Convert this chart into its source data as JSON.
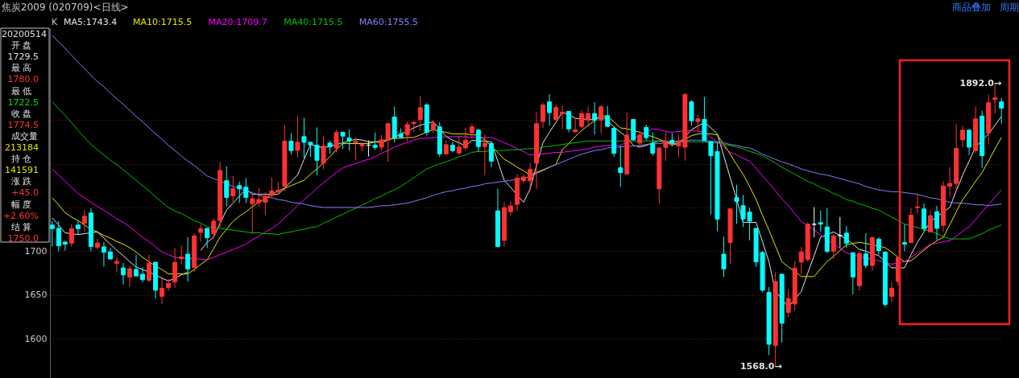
{
  "chart_data": {
    "type": "candlestick",
    "title": "焦炭2009 (020709)<日线>",
    "categories": [
      null,
      null,
      null,
      null,
      null,
      null,
      null,
      null,
      null,
      null,
      null,
      null,
      null,
      null,
      null,
      null,
      null,
      null,
      null,
      null,
      null,
      null,
      null,
      null,
      null,
      null,
      null,
      null,
      null,
      null,
      null,
      null,
      null,
      null,
      null,
      null,
      null,
      null,
      null,
      null,
      null,
      null,
      null,
      null,
      null,
      null,
      null,
      null,
      null,
      null,
      null,
      null,
      null,
      null,
      null,
      null,
      null,
      null,
      null,
      null,
      null,
      null,
      null,
      null,
      null,
      null,
      null,
      null,
      null,
      null,
      null,
      null,
      null,
      null,
      null,
      null,
      null,
      null,
      null,
      null,
      null,
      null,
      null,
      null,
      null,
      null,
      null,
      null,
      null,
      null,
      null,
      null,
      null,
      null,
      null,
      null,
      null,
      null,
      null,
      null,
      null,
      null,
      null,
      null,
      null,
      null,
      null,
      null,
      null,
      null,
      null,
      null,
      null,
      null,
      null,
      null,
      null,
      null,
      null,
      null,
      null,
      null,
      null,
      null,
      null,
      null,
      null,
      null,
      null,
      null,
      null,
      null,
      null,
      null,
      null,
      null,
      null,
      null,
      null,
      null,
      null,
      null,
      null,
      null,
      null,
      null,
      null,
      null
    ],
    "ohlc": [
      [
        1729.8,
        1734.4,
        1705.2,
        1725.8
      ],
      [
        1726.1,
        1734.4,
        1700,
        1706.2
      ],
      [
        1710.5,
        1710.5,
        1700.6,
        1708
      ],
      [
        1709.2,
        1730.8,
        1705.2,
        1725.8
      ],
      [
        1729.8,
        1734.4,
        1719,
        1725.8
      ],
      [
        1732,
        1746.7,
        1722.1,
        1740
      ],
      [
        1743.7,
        1749.2,
        1700,
        1705.2
      ],
      [
        1704.6,
        1714.1,
        1701.8,
        1709.2
      ],
      [
        1704.9,
        1710.5,
        1682.2,
        1698.8
      ],
      [
        1699.1,
        1703.7,
        1690.5,
        1691.1
      ],
      [
        1686.2,
        1693.8,
        1676,
        1688.3
      ],
      [
        1680.9,
        1686.5,
        1661.9,
        1672.9
      ],
      [
        1670.5,
        1682.8,
        1659.1,
        1679.7
      ],
      [
        1679.1,
        1695.7,
        1671.1,
        1671.7
      ],
      [
        1673.6,
        1681.5,
        1664.3,
        1667.4
      ],
      [
        1666.8,
        1695.7,
        1665.3,
        1686.2
      ],
      [
        1687.4,
        1687.4,
        1645.9,
        1655.4
      ],
      [
        1648.3,
        1670.5,
        1639.7,
        1657.6
      ],
      [
        1658.2,
        1668.3,
        1654.5,
        1663.1
      ],
      [
        1664.9,
        1703.7,
        1658.2,
        1687.1
      ],
      [
        1691.4,
        1706.8,
        1684.6,
        1693.5
      ],
      [
        1696.6,
        1716,
        1665.3,
        1679.7
      ],
      [
        1681.5,
        1720.6,
        1676,
        1717.5
      ],
      [
        1721.5,
        1730.8,
        1711.1,
        1725.8
      ],
      [
        1726.1,
        1726.1,
        1703.7,
        1715.4
      ],
      [
        1720,
        1737.5,
        1714.5,
        1734.4
      ],
      [
        1735,
        1802.1,
        1726.8,
        1792.3
      ],
      [
        1780.6,
        1797.2,
        1751.4,
        1761.5
      ],
      [
        1763.3,
        1786.1,
        1756,
        1771.3
      ],
      [
        1775,
        1779.6,
        1755,
        1771.3
      ],
      [
        1773.2,
        1783.6,
        1755,
        1761.5
      ],
      [
        1754.4,
        1765.2,
        1720,
        1760
      ],
      [
        1755.4,
        1772,
        1750.7,
        1759
      ],
      [
        1756,
        1767.6,
        1741.2,
        1762.7
      ],
      [
        1763.7,
        1784.3,
        1760.6,
        1768.9
      ],
      [
        1767.7,
        1778.7,
        1764.6,
        1769.8
      ],
      [
        1774.4,
        1844.2,
        1768.3,
        1825.8
      ],
      [
        1825.8,
        1835,
        1810.4,
        1815
      ],
      [
        1815.3,
        1854.4,
        1806.7,
        1824.5
      ],
      [
        1831,
        1852.5,
        1806.7,
        1824.5
      ],
      [
        1824.5,
        1825.2,
        1807.6,
        1821.5
      ],
      [
        1821.2,
        1841.5,
        1786.7,
        1803.9
      ],
      [
        1800.6,
        1831.3,
        1793.8,
        1820.5
      ],
      [
        1823.6,
        1826.1,
        1811.3,
        1819.3
      ],
      [
        1818.1,
        1838.7,
        1812.9,
        1835.6
      ],
      [
        1835.9,
        1836.8,
        1816.9,
        1831.6
      ],
      [
        1829.2,
        1839,
        1815,
        1826.1
      ],
      [
        1824.2,
        1830.4,
        1804.5,
        1825.8
      ],
      [
        1820.5,
        1824.2,
        1813.8,
        1822
      ],
      [
        1821.2,
        1826.7,
        1808.2,
        1821.2
      ],
      [
        1821.2,
        1835.9,
        1816,
        1818.7
      ],
      [
        1819,
        1832.8,
        1815,
        1827.3
      ],
      [
        1826.7,
        1846.7,
        1802.1,
        1845.8
      ],
      [
        1853.4,
        1865.4,
        1824.2,
        1829.2
      ],
      [
        1834.1,
        1840.5,
        1829.2,
        1830.4
      ],
      [
        1832.8,
        1848.2,
        1825.2,
        1844.8
      ],
      [
        1845.8,
        1848.8,
        1836.5,
        1847.3
      ],
      [
        1850.4,
        1877.4,
        1837.5,
        1864.2
      ],
      [
        1867.3,
        1869.1,
        1832.2,
        1835.9
      ],
      [
        1839,
        1849.8,
        1835.3,
        1845.8
      ],
      [
        1842.1,
        1847.6,
        1807.6,
        1811.3
      ],
      [
        1811.3,
        1826.7,
        1809.5,
        1821.8
      ],
      [
        1821.2,
        1825.2,
        1813.2,
        1815
      ],
      [
        1812.2,
        1832.2,
        1809.8,
        1819
      ],
      [
        1818.1,
        1841.5,
        1815,
        1826.7
      ],
      [
        1835.3,
        1845.8,
        1829.2,
        1842.1
      ],
      [
        1838.4,
        1840.2,
        1813.5,
        1819.6
      ],
      [
        1819.6,
        1832.8,
        1786.7,
        1823.6
      ],
      [
        1823,
        1825.2,
        1795.9,
        1803
      ],
      [
        1746.1,
        1771.3,
        1704.3,
        1705.2
      ],
      [
        1712.3,
        1756,
        1705.2,
        1749.8
      ],
      [
        1745.2,
        1757.2,
        1740.6,
        1751.7
      ],
      [
        1753.5,
        1788.2,
        1746.1,
        1783.6
      ],
      [
        1780.6,
        1788.2,
        1778.1,
        1784.9
      ],
      [
        1780.6,
        1800.6,
        1768.9,
        1793.5
      ],
      [
        1800.6,
        1859,
        1771.3,
        1845.8
      ],
      [
        1848.2,
        1869.7,
        1840.5,
        1867.3
      ],
      [
        1870.7,
        1879.6,
        1843.6,
        1858.4
      ],
      [
        1850.4,
        1867.3,
        1849.8,
        1864.2
      ],
      [
        1857.4,
        1866.1,
        1839.6,
        1859
      ],
      [
        1859.9,
        1859.9,
        1835.9,
        1839.9
      ],
      [
        1836.5,
        1851.3,
        1835.9,
        1838.7
      ],
      [
        1842.7,
        1861.4,
        1840.5,
        1857.4
      ],
      [
        1849.8,
        1865.1,
        1842.1,
        1857.4
      ],
      [
        1857.4,
        1870.4,
        1833.5,
        1849.8
      ],
      [
        1849.8,
        1866.7,
        1834.4,
        1865.1
      ],
      [
        1855,
        1866.1,
        1842.1,
        1842.7
      ],
      [
        1840.5,
        1842.7,
        1808.2,
        1811.9
      ],
      [
        1795.3,
        1820.5,
        1773.5,
        1789.8
      ],
      [
        1788.3,
        1859,
        1787.3,
        1832.8
      ],
      [
        1850.7,
        1850.7,
        1826.7,
        1827.3
      ],
      [
        1823.6,
        1837.5,
        1819,
        1832.8
      ],
      [
        1841.5,
        1844.5,
        1826.7,
        1829.8
      ],
      [
        1823,
        1835.9,
        1809.2,
        1811.9
      ],
      [
        1771.3,
        1818.1,
        1754.1,
        1818.1
      ],
      [
        1818.7,
        1836.5,
        1803.6,
        1826.1
      ],
      [
        1826.7,
        1835,
        1819.9,
        1823.6
      ],
      [
        1820.5,
        1832.8,
        1807.6,
        1826.1
      ],
      [
        1819,
        1881.1,
        1803.6,
        1879
      ],
      [
        1870.7,
        1872.8,
        1843.6,
        1849.1
      ],
      [
        1848.2,
        1855.9,
        1837.5,
        1851.3
      ],
      [
        1850.7,
        1876.5,
        1826.1,
        1826.7
      ],
      [
        1825.2,
        1825.2,
        1742.1,
        1809.2
      ],
      [
        1813.8,
        1824.2,
        1722.8,
        1736.6
      ],
      [
        1696.6,
        1716.6,
        1670.5,
        1679.7
      ],
      [
        1709.8,
        1748.3,
        1685.2,
        1748.3
      ],
      [
        1761.2,
        1775.9,
        1731.4,
        1756.9
      ],
      [
        1752,
        1764.3,
        1727.7,
        1736.9
      ],
      [
        1744.6,
        1749.8,
        1712.3,
        1734.4
      ],
      [
        1726.1,
        1726.1,
        1682.2,
        1687.7
      ],
      [
        1698.5,
        1700.6,
        1653,
        1655.4
      ],
      [
        1652.9,
        1659.1,
        1581.3,
        1593.6
      ],
      [
        1592.1,
        1675.4,
        1568.0,
        1665.3
      ],
      [
        1673.6,
        1674.5,
        1595.5,
        1617.6
      ],
      [
        1629.9,
        1657,
        1624.7,
        1645.9
      ],
      [
        1639.7,
        1688.9,
        1632.3,
        1680.6
      ],
      [
        1687.7,
        1704.9,
        1673.6,
        1699.1
      ],
      [
        1690.5,
        1732.9,
        1688.3,
        1730.8
      ],
      [
        1730.8,
        1750.4,
        1716,
        1730.8
      ],
      [
        1732.6,
        1746.7,
        1722.1,
        1730.8
      ],
      [
        1727.7,
        1749.2,
        1697.5,
        1699.7
      ],
      [
        1700,
        1719,
        1691.4,
        1717.5
      ],
      [
        1717.8,
        1739.1,
        1703.7,
        1717.8
      ],
      [
        1720.6,
        1728.9,
        1703.7,
        1709.2
      ],
      [
        1698.2,
        1698.2,
        1650.8,
        1670.5
      ],
      [
        1660.6,
        1699.1,
        1655.1,
        1697.5
      ],
      [
        1696.9,
        1720.6,
        1680.6,
        1683.7
      ],
      [
        1683.7,
        1717.5,
        1677.6,
        1715.4
      ],
      [
        1713.8,
        1716,
        1696,
        1700.6
      ],
      [
        1699.1,
        1699.1,
        1636,
        1639.1
      ],
      [
        1648.3,
        1664.3,
        1641.6,
        1657.6
      ],
      [
        1665.3,
        1693.8,
        1660.6,
        1692.9
      ],
      [
        1709.8,
        1730.8,
        1700,
        1708
      ],
      [
        1709.8,
        1749.2,
        1709.2,
        1741.2
      ],
      [
        1749.8,
        1765.8,
        1743.1,
        1750.7
      ],
      [
        1748.3,
        1754.4,
        1722.8,
        1726.1
      ],
      [
        1722.1,
        1746.7,
        1721.5,
        1740.6
      ],
      [
        1745.2,
        1752,
        1712.9,
        1726.1
      ],
      [
        1729.5,
        1780.0,
        1722.5,
        1774.5
      ],
      [
        1774.4,
        1795.9,
        1762.1,
        1777.5
      ],
      [
        1777.5,
        1845.2,
        1768.3,
        1817.5
      ],
      [
        1827.3,
        1843.3,
        1819,
        1838.4
      ],
      [
        1838.4,
        1838.4,
        1809.8,
        1819
      ],
      [
        1815,
        1865.1,
        1811.9,
        1851.3
      ],
      [
        1854.4,
        1860.5,
        1795.3,
        1809.2
      ],
      [
        1835.3,
        1879,
        1822.1,
        1869.7
      ],
      [
        1873.4,
        1892.0,
        1857.4,
        1875.3
      ],
      [
        1870.7,
        1875.3,
        1845.8,
        1863.6
      ]
    ],
    "series": [
      {
        "name": "MA5:1743.4",
        "type": "line",
        "color": "#e6e6e6",
        "values": [
          1738,
          1730,
          1721,
          1720,
          1719,
          1720,
          1721,
          1722,
          1715,
          1708,
          1701,
          1695,
          1688,
          1682,
          1679,
          1676,
          1673,
          1669,
          1666,
          1669,
          1673,
          1676,
          null,
          1701,
          1710,
          1716,
          1732,
          1747,
          1755,
          1763,
          1771,
          1765,
          1765,
          1765,
          1765,
          1765,
          1772,
          1780,
          1787,
          1805,
          1822,
          1820,
          1818,
          1820,
          1822,
          1824,
          1826,
          1828,
          1827,
          1825,
          1825,
          1824,
          1827,
          1830,
          1834,
          1837,
          1841,
          1844,
          1846,
          1848,
          1840,
          1831,
          1827,
          1824,
          1820,
          1827,
          1826,
          1826,
          1825,
          1803,
          1781,
          1773,
          1764,
          1756,
          1771,
          1798,
          1824,
          1836,
          1847,
          1859,
          1856,
          1852,
          1851,
          1851,
          1850,
          1855,
          1849,
          1842,
          1836,
          1830,
          1821,
          1819,
          1821,
          1824,
          1826,
          1825,
          1823,
          1822,
          1831,
          1839,
          1843,
          1847,
          1841,
          1834,
          1809,
          1784,
          1759,
          1733,
          1733,
          1733,
          1711,
          1688,
          1654,
          1645,
          1636,
          1645,
          1654,
          1675,
          1695,
          1716,
          1719,
          1722,
          1718,
          1714,
          1708,
          1702,
          1700,
          1697,
          1695,
          1688,
          1681,
          1681,
          1681,
          1696,
          1710,
          1722,
          1734,
          1739,
          1745,
          1750,
          1769,
          1787,
          1803,
          1819,
          1827,
          1834,
          1844,
          1854
        ]
      },
      {
        "name": "MA10:1715.5",
        "type": "line",
        "color": "#e8e800",
        "values": [
          1761,
          1753,
          1744,
          1739,
          1735,
          1730,
          1725,
          1722,
          1718,
          1715,
          1711,
          1708,
          1704,
          1699,
          1693,
          1688,
          1683,
          1679,
          1674,
          1674,
          1674,
          1674,
          1679,
          1685,
          1690,
          1703,
          1716,
          1725,
          1734,
          1740,
          1745,
          1751,
          1756,
          1760,
          1765,
          1769,
          1772,
          1775,
          1778,
          1781,
          1788,
          1794,
          1801,
          1808,
          1816,
          1823,
          1823,
          1823,
          1823,
          1823,
          1825,
          1826,
          1828,
          1829,
          1829,
          1830,
          1830,
          1833,
          1836,
          1839,
          1837,
          1836,
          1834,
          1834,
          1834,
          1833,
          1833,
          1827,
          1820,
          1813,
          1805,
          1801,
          1796,
          1792,
          1787,
          1790,
          1793,
          1796,
          1799,
          1816,
          1823,
          1831,
          1838,
          1844,
          1849,
          1855,
          1854,
          1848,
          1841,
          1840,
          1838,
          1836,
          1833,
          1831,
          1828,
          1825,
          1821,
          1825,
          1828,
          1832,
          1834,
          1835,
          1834,
          1833,
          1822,
          1811,
          1799,
          1788,
          1774,
          1759,
          1741,
          1724,
          1706,
          1688,
          1682,
          1677,
          1671,
          1671,
          1671,
          1680,
          1688,
          1694,
          1701,
          1707,
          1709,
          1710,
          1709,
          1707,
          1706,
          1704,
          1699,
          1693,
          1688,
          1689,
          1695,
          1701,
          1707,
          1712,
          1716,
          1730,
          1745,
          1759,
          1769,
          1780,
          1790,
          1803,
          1817,
          1830
        ]
      },
      {
        "name": "MA20:1709.7",
        "type": "line",
        "color": "#ff00ff",
        "values": [
          1794,
          1787,
          1780,
          1773,
          1766,
          1761,
          1756,
          1751,
          1747,
          1742,
          1737,
          1733,
          1728,
          1722,
          1716,
          1711,
          1705,
          1699,
          1696,
          1693,
          1692,
          1692,
          1691,
          1691,
          1690,
          1693,
          1696,
          1699,
          1702,
          1705,
          1708,
          1713,
          1717,
          1722,
          1726,
          1731,
          1738,
          1745,
          1752,
          1759,
          1765,
          1772,
          1778,
          1784,
          1790,
          1795,
          1798,
          1800,
          1803,
          1805,
          1808,
          1812,
          1815,
          1819,
          1822,
          1824,
          1827,
          1829,
          1829,
          1830,
          1830,
          1831,
          1831,
          1831,
          1831,
          1830,
          1830,
          1830,
          1830,
          1827,
          1824,
          1821,
          1817,
          1814,
          1810,
          1811,
          1811,
          1812,
          1813,
          1813,
          1814,
          1815,
          1816,
          1817,
          1819,
          1820,
          1821,
          1821,
          1821,
          1825,
          1829,
          1832,
          1836,
          1840,
          1839,
          1837,
          1836,
          1837,
          1837,
          1838,
          1837,
          1836,
          1830,
          1825,
          1819,
          1813,
          1810,
          1806,
          1803,
          1795,
          1786,
          1778,
          1769,
          1760,
          1752,
          1743,
          1734,
          1729,
          1724,
          1719,
          1714,
          1708,
          1703,
          1698,
          1696,
          1694,
          1692,
          1691,
          1689,
          1687,
          1685,
          1687,
          1688,
          1693,
          1698,
          1703,
          1708,
          1709,
          1711,
          1712,
          1717,
          1723,
          1728,
          1736,
          1745,
          1753,
          1762,
          1770
        ]
      },
      {
        "name": "MA40:1715.5",
        "type": "line",
        "color": "#00c000",
        "values": [
          1871,
          1863,
          1855,
          1847,
          1838,
          1830,
          1822,
          1816,
          1810,
          1804,
          1799,
          1793,
          1787,
          1781,
          1775,
          1769,
          1762,
          1756,
          1750,
          1746,
          1743,
          1739,
          1735,
          1732,
          1728,
          1727,
          1726,
          1725,
          1724,
          1723,
          1722,
          1721,
          1721,
          1720,
          1720,
          1719,
          1721,
          1722,
          1724,
          1725,
          1727,
          1728,
          1732,
          1735,
          1739,
          1742,
          1746,
          1749,
          1753,
          1756,
          1760,
          1763,
          1767,
          1770,
          1774,
          1779,
          1784,
          1789,
          1794,
          1797,
          1800,
          1802,
          1805,
          1808,
          1810,
          1813,
          1814,
          1814,
          1815,
          1815,
          1815,
          1816,
          1816,
          1817,
          1817,
          1818,
          1819,
          1820,
          1821,
          1822,
          1823,
          1824,
          1825,
          1826,
          1826,
          1826,
          1826,
          1826,
          1826,
          1826,
          1826,
          1826,
          1826,
          1826,
          1826,
          1826,
          1825,
          1825,
          1825,
          1825,
          1825,
          1825,
          1824,
          1824,
          1822,
          1821,
          1819,
          1817,
          1814,
          1812,
          1809,
          1805,
          1801,
          1796,
          1792,
          1788,
          1784,
          1780,
          1777,
          1773,
          1770,
          1766,
          1763,
          1759,
          1757,
          1754,
          1752,
          1749,
          1747,
          1743,
          1739,
          1735,
          1731,
          1729,
          1727,
          1725,
          1723,
          1720,
          1717,
          1714,
          1714,
          1714,
          1714,
          1717,
          1720,
          1724,
          1727,
          1730
        ]
      },
      {
        "name": "MA60:1755.5",
        "type": "line",
        "color": "#8080ff",
        "values": [
          1947,
          1939,
          1932,
          1924,
          1916,
          1909,
          1901,
          1894,
          1888,
          1881,
          1874,
          1868,
          1861,
          1854,
          1848,
          1841,
          1834,
          1828,
          1821,
          1815,
          1809,
          1803,
          1798,
          1792,
          1786,
          1783,
          1780,
          1777,
          1774,
          1772,
          1769,
          1767,
          1764,
          1762,
          1761,
          1759,
          1758,
          1756,
          1755,
          1754,
          1752,
          1751,
          1750,
          1750,
          1750,
          1750,
          1750,
          1750,
          1750,
          1750,
          1751,
          1752,
          1752,
          1753,
          1754,
          1755,
          1757,
          1759,
          1761,
          1764,
          1766,
          1768,
          1769,
          1771,
          1772,
          1774,
          1775,
          1777,
          1778,
          1779,
          1780,
          1781,
          1782,
          1784,
          1785,
          1789,
          1792,
          1796,
          1799,
          1802,
          1805,
          1808,
          1811,
          1813,
          1815,
          1816,
          1818,
          1819,
          1819,
          1820,
          1820,
          1821,
          1822,
          1823,
          1823,
          1824,
          1825,
          1826,
          1826,
          1827,
          1827,
          1826,
          1826,
          1825,
          1824,
          1822,
          1821,
          1819,
          1818,
          1815,
          1811,
          1808,
          1805,
          1802,
          1800,
          1797,
          1794,
          1792,
          1790,
          1788,
          1787,
          1785,
          1783,
          1781,
          1779,
          1777,
          1774,
          1772,
          1770,
          1769,
          1768,
          1768,
          1767,
          1766,
          1765,
          1763,
          1761,
          1760,
          1758,
          1756,
          1755,
          1755,
          1754,
          1753,
          1753,
          1752,
          1753,
          1754
        ]
      }
    ],
    "ylim": [
      1555,
      1955
    ],
    "yticks": [
      1600,
      1650,
      1700,
      {
        "value": 1750,
        "label": null
      },
      {
        "value": 1800,
        "label": null
      },
      {
        "value": 1850,
        "label": null
      }
    ],
    "grid": "y",
    "tick_labels": "y",
    "annotations": [
      "K",
      "商品叠加",
      "周期",
      "20200514",
      "开 盘",
      "1729.5",
      "最 高",
      "1780.0",
      "最 低",
      "1722.5",
      "收 盘",
      "1774.5",
      "成交量",
      "213184",
      "持 仓",
      "141591",
      "涨 跌",
      "+45.0",
      "幅 度",
      "+2.60%",
      "结 算",
      "1750.0",
      "1892.0→",
      "1568.0→"
    ]
  }
}
